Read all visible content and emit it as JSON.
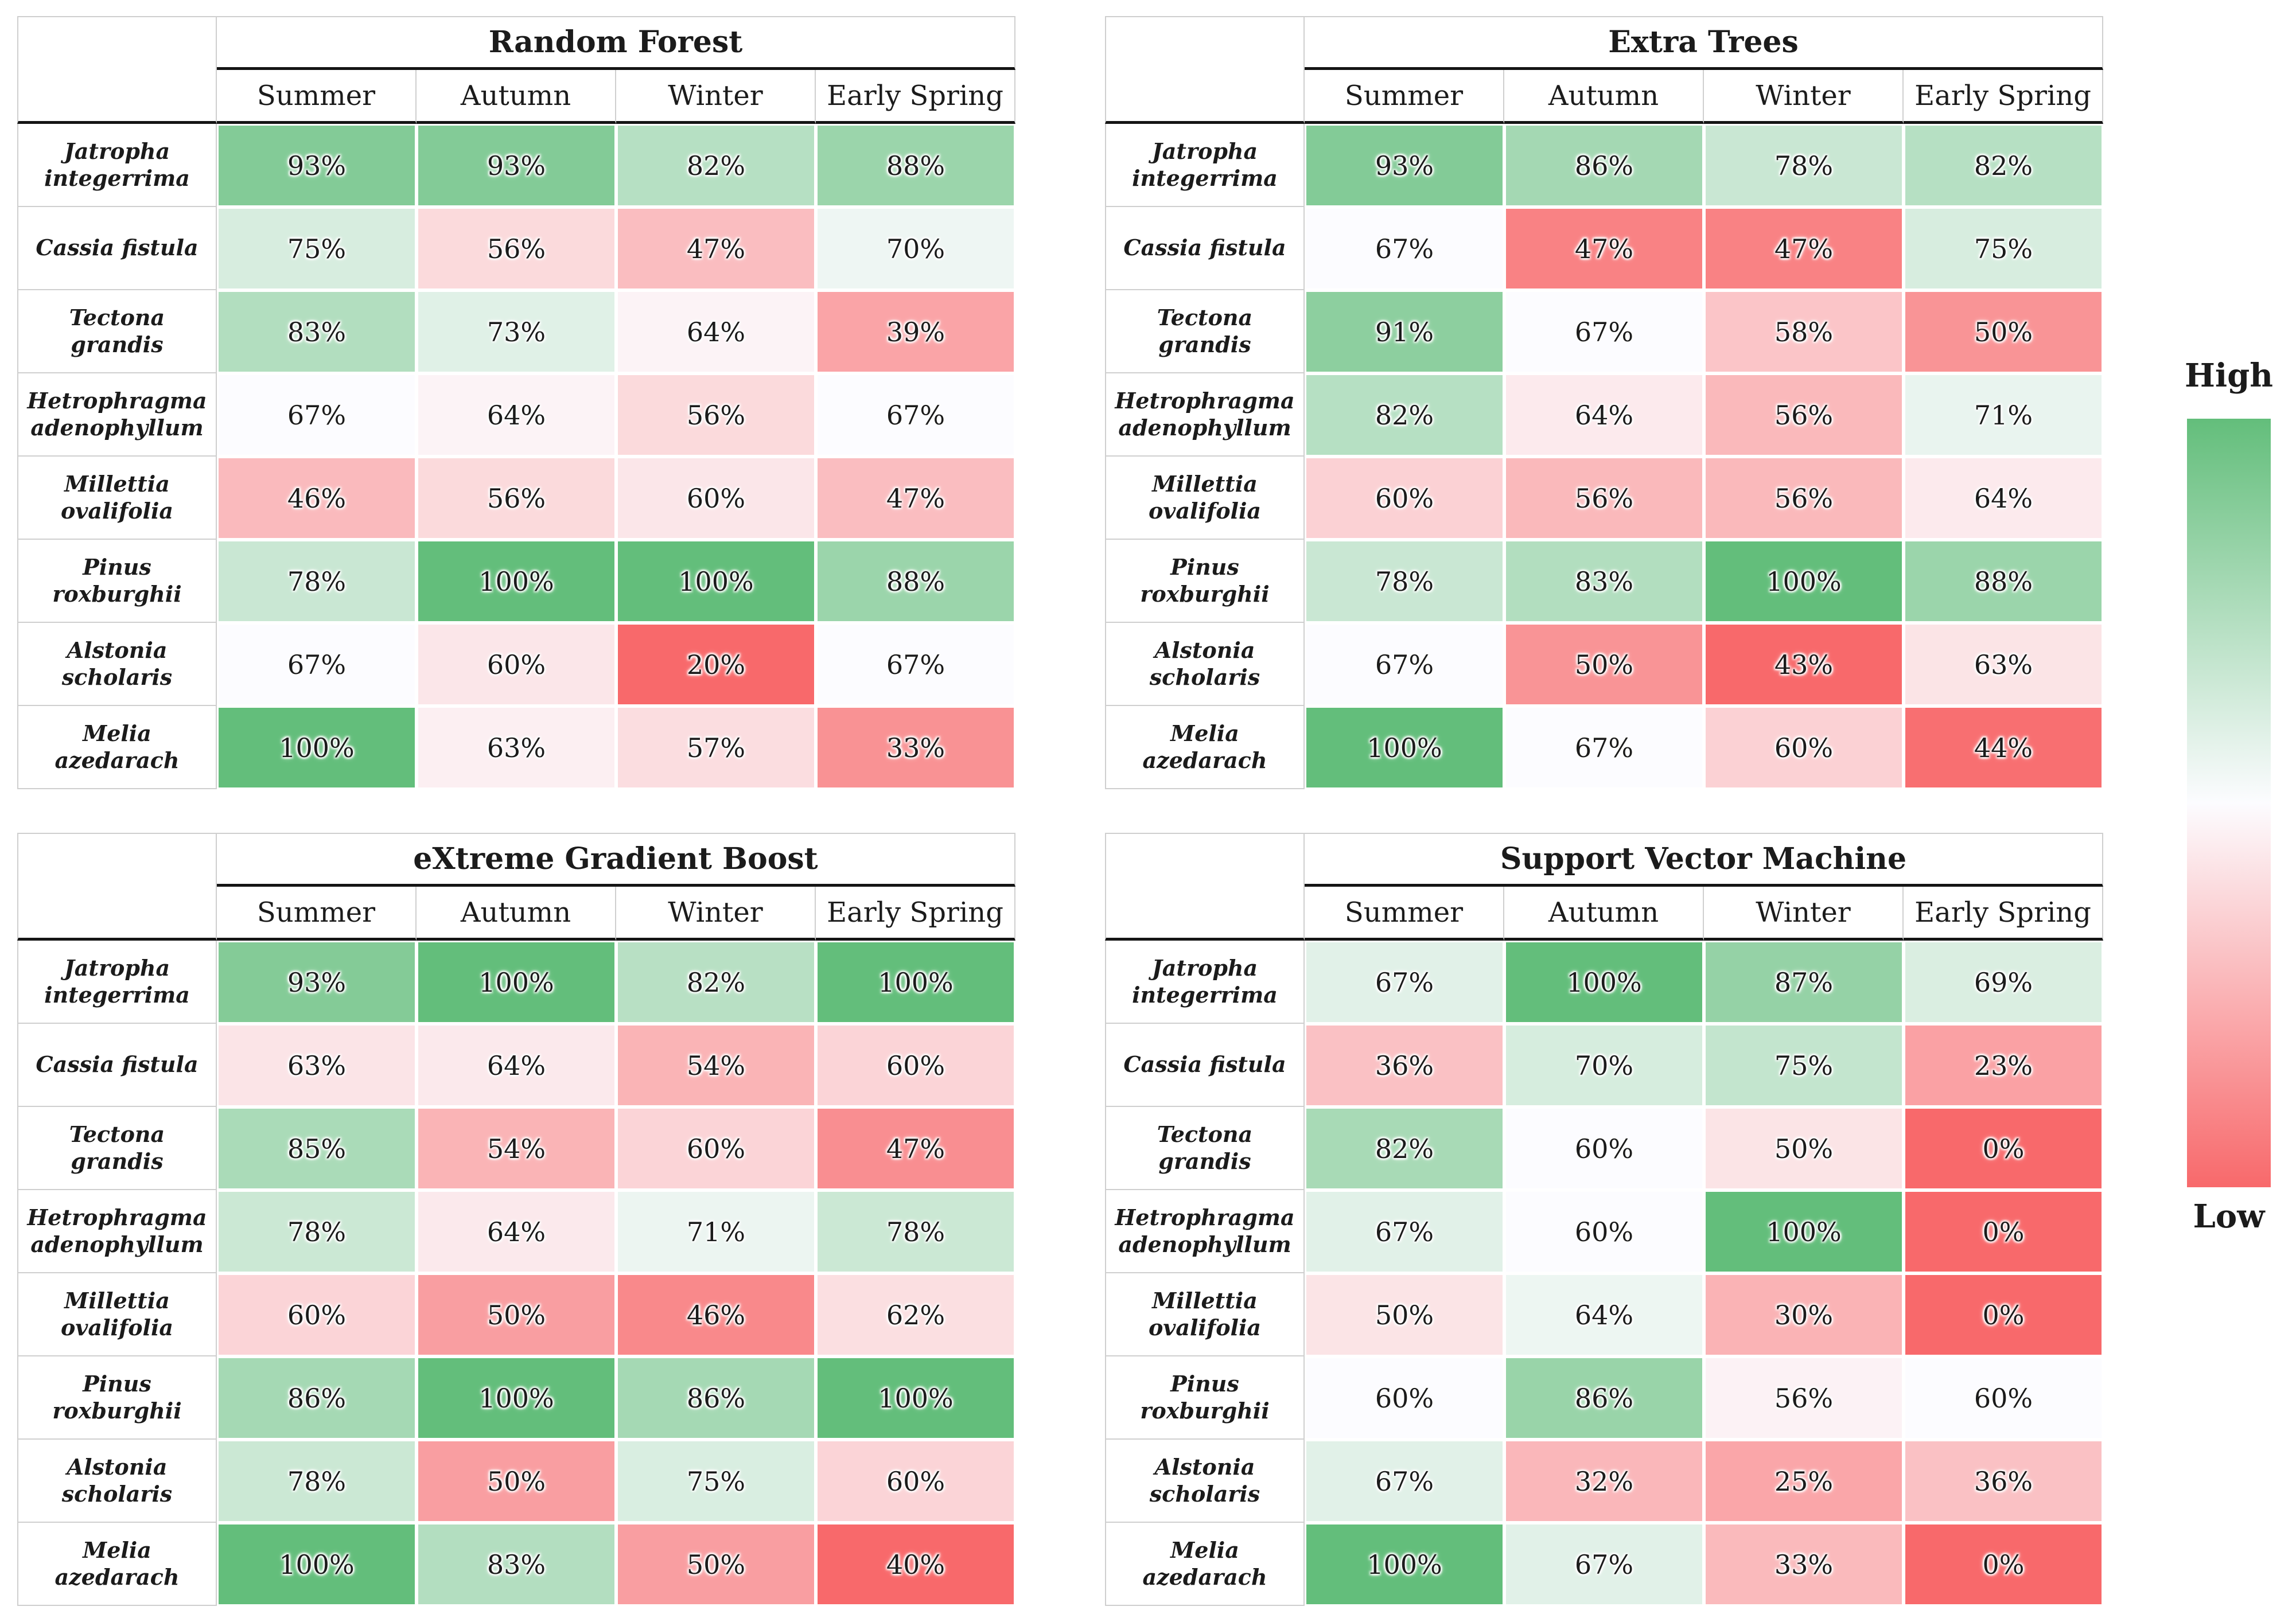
{
  "unit": "%",
  "legend": {
    "high_label": "High",
    "low_label": "Low"
  },
  "colorscale": {
    "high": "#63BE7B",
    "mid": "#FCFCFF",
    "low": "#F8696B",
    "mapping": "per-table 3-color scale: table minimum = low color, table median = mid color, table maximum = high color"
  },
  "chart_data": [
    {
      "type": "heatmap",
      "title": "Random Forest",
      "columns": [
        "Summer",
        "Autumn",
        "Winter",
        "Early Spring"
      ],
      "rows": [
        "Jatropha integerrima",
        "Cassia fistula",
        "Tectona grandis",
        "Hetrophragma adenophyllum",
        "Millettia ovalifolia",
        "Pinus roxburghii",
        "Alstonia scholaris",
        "Melia azedarach"
      ],
      "values": [
        [
          93,
          93,
          82,
          88
        ],
        [
          75,
          56,
          47,
          70
        ],
        [
          83,
          73,
          64,
          39
        ],
        [
          67,
          64,
          56,
          67
        ],
        [
          46,
          56,
          60,
          47
        ],
        [
          78,
          100,
          100,
          88
        ],
        [
          67,
          60,
          20,
          67
        ],
        [
          100,
          63,
          57,
          33
        ]
      ]
    },
    {
      "type": "heatmap",
      "title": "Extra Trees",
      "columns": [
        "Summer",
        "Autumn",
        "Winter",
        "Early Spring"
      ],
      "rows": [
        "Jatropha integerrima",
        "Cassia fistula",
        "Tectona grandis",
        "Hetrophragma adenophyllum",
        "Millettia ovalifolia",
        "Pinus roxburghii",
        "Alstonia scholaris",
        "Melia azedarach"
      ],
      "values": [
        [
          93,
          86,
          78,
          82
        ],
        [
          67,
          47,
          47,
          75
        ],
        [
          91,
          67,
          58,
          50
        ],
        [
          82,
          64,
          56,
          71
        ],
        [
          60,
          56,
          56,
          64
        ],
        [
          78,
          83,
          100,
          88
        ],
        [
          67,
          50,
          43,
          63
        ],
        [
          100,
          67,
          60,
          44
        ]
      ]
    },
    {
      "type": "heatmap",
      "title": "eXtreme Gradient Boost",
      "columns": [
        "Summer",
        "Autumn",
        "Winter",
        "Early Spring"
      ],
      "rows": [
        "Jatropha integerrima",
        "Cassia fistula",
        "Tectona grandis",
        "Hetrophragma adenophyllum",
        "Millettia ovalifolia",
        "Pinus roxburghii",
        "Alstonia scholaris",
        "Melia azedarach"
      ],
      "values": [
        [
          93,
          100,
          82,
          100
        ],
        [
          63,
          64,
          54,
          60
        ],
        [
          85,
          54,
          60,
          47
        ],
        [
          78,
          64,
          71,
          78
        ],
        [
          60,
          50,
          46,
          62
        ],
        [
          86,
          100,
          86,
          100
        ],
        [
          78,
          50,
          75,
          60
        ],
        [
          100,
          83,
          50,
          40
        ]
      ]
    },
    {
      "type": "heatmap",
      "title": "Support Vector Machine",
      "columns": [
        "Summer",
        "Autumn",
        "Winter",
        "Early Spring"
      ],
      "rows": [
        "Jatropha integerrima",
        "Cassia fistula",
        "Tectona grandis",
        "Hetrophragma adenophyllum",
        "Millettia ovalifolia",
        "Pinus roxburghii",
        "Alstonia scholaris",
        "Melia azedarach"
      ],
      "values": [
        [
          67,
          100,
          87,
          69
        ],
        [
          36,
          70,
          75,
          23
        ],
        [
          82,
          60,
          50,
          0
        ],
        [
          67,
          60,
          100,
          0
        ],
        [
          50,
          64,
          30,
          0
        ],
        [
          60,
          86,
          56,
          60
        ],
        [
          67,
          32,
          25,
          36
        ],
        [
          100,
          67,
          33,
          0
        ]
      ]
    }
  ]
}
